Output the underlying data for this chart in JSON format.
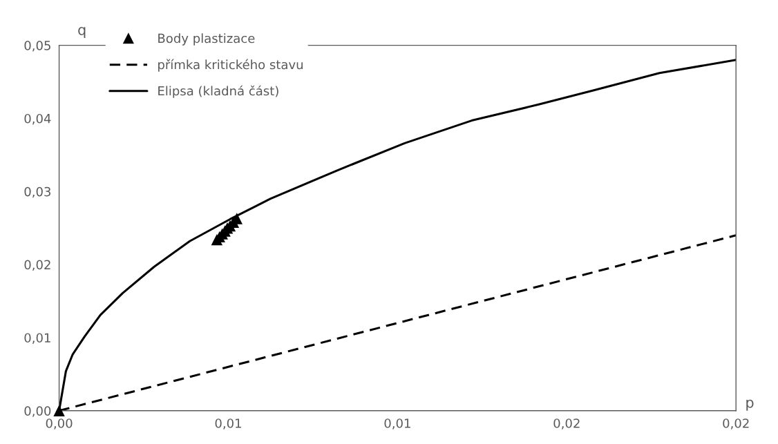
{
  "chart_data": {
    "type": "line",
    "xlabel": "p",
    "ylabel": "q",
    "xlim": [
      0,
      0.02
    ],
    "ylim": [
      0,
      0.05
    ],
    "xticks": [
      {
        "value": 0,
        "label": "0,00"
      },
      {
        "value": 0.005,
        "label": "0,01"
      },
      {
        "value": 0.01,
        "label": "0,01"
      },
      {
        "value": 0.015,
        "label": "0,02"
      },
      {
        "value": 0.02,
        "label": "0,02"
      }
    ],
    "yticks": [
      {
        "value": 0,
        "label": "0,00"
      },
      {
        "value": 0.01,
        "label": "0,01"
      },
      {
        "value": 0.02,
        "label": "0,02"
      },
      {
        "value": 0.03,
        "label": "0,03"
      },
      {
        "value": 0.04,
        "label": "0,04"
      },
      {
        "value": 0.05,
        "label": "0,05"
      }
    ],
    "grid": false,
    "legend": "top left",
    "series": [
      {
        "name": "Body plastizace",
        "type": "scatter",
        "marker": "triangle",
        "color": "#000000",
        "x": [
          0,
          0.00466,
          0.00474,
          0.00482,
          0.0049,
          0.00497,
          0.00505,
          0.00515,
          0.00525
        ],
        "values": [
          0,
          0.0234,
          0.0238,
          0.0242,
          0.0246,
          0.025,
          0.0253,
          0.0258,
          0.0263
        ]
      },
      {
        "name": "přímka kritického stavu",
        "line_style": "dashed",
        "marker": "none",
        "color": "#000000",
        "x": [
          0,
          0.02
        ],
        "values": [
          0,
          0.024
        ]
      },
      {
        "name": "Elipsa (kladná část)",
        "line_style": "solid",
        "marker": "none",
        "color": "#000000",
        "x": [
          0,
          0.0002,
          0.0004,
          0.00076,
          0.00122,
          0.00188,
          0.00281,
          0.00386,
          0.00505,
          0.00578,
          0.00624,
          0.00823,
          0.01021,
          0.01219,
          0.01417,
          0.01576,
          0.01774,
          0.02
        ],
        "values": [
          0,
          0.0054,
          0.0077,
          0.0102,
          0.0131,
          0.0161,
          0.0197,
          0.0232,
          0.0262,
          0.0279,
          0.029,
          0.0329,
          0.0366,
          0.0397,
          0.0419,
          0.0438,
          0.0462,
          0.048
        ]
      }
    ]
  }
}
